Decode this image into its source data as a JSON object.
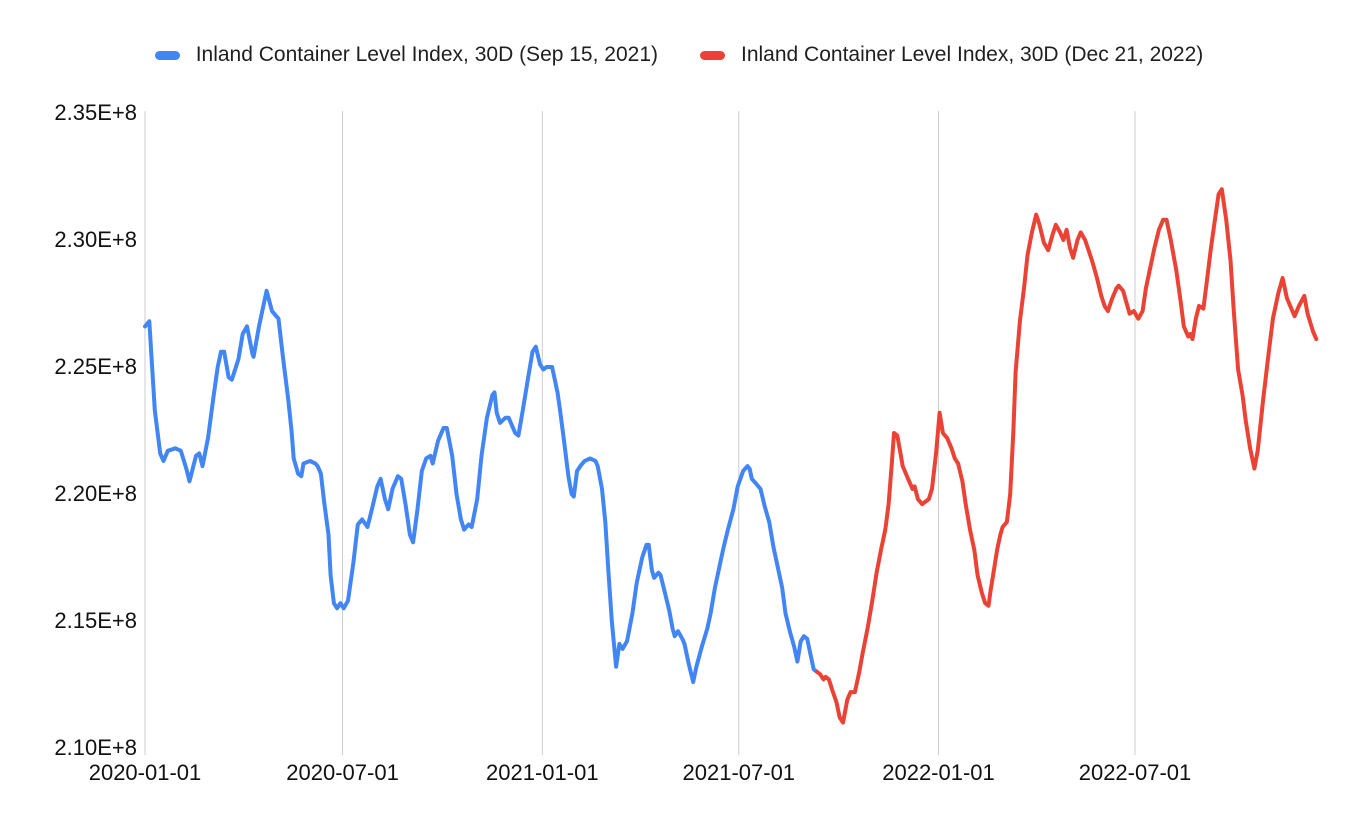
{
  "page": {
    "background": "#ffffff"
  },
  "legend": {
    "items": [
      {
        "label": "Inland Container Level Index, 30D (Sep 15, 2021)",
        "color": "#4285F4"
      },
      {
        "label": "Inland Container Level Index, 30D (Dec 21, 2022)",
        "color": "#EA4335"
      }
    ]
  },
  "chart_data": {
    "type": "line",
    "title": "",
    "legend_position": "top",
    "grid": {
      "vertical": true,
      "horizontal": false,
      "color": "#cccccc"
    },
    "value_unit": "1E+8",
    "x_axis": {
      "unit": "days_since_2020-01-01",
      "min": 0,
      "max": 1092,
      "ticks": [
        {
          "day": 0,
          "label": "2020-01-01"
        },
        {
          "day": 182,
          "label": "2020-07-01"
        },
        {
          "day": 366,
          "label": "2021-01-01"
        },
        {
          "day": 547,
          "label": "2021-07-01"
        },
        {
          "day": 731,
          "label": "2022-01-01"
        },
        {
          "day": 912,
          "label": "2022-07-01"
        }
      ]
    },
    "y_axis": {
      "min": 2.1,
      "max": 2.35,
      "ticks": [
        {
          "value": 2.1,
          "label": "2.10E+8"
        },
        {
          "value": 2.15,
          "label": "2.15E+8"
        },
        {
          "value": 2.2,
          "label": "2.20E+8"
        },
        {
          "value": 2.25,
          "label": "2.25E+8"
        },
        {
          "value": 2.3,
          "label": "2.30E+8"
        },
        {
          "value": 2.35,
          "label": "2.35E+8"
        }
      ]
    },
    "series": [
      {
        "name": "Inland Container Level Index, 30D (Sep 15, 2021)",
        "color": "#4285F4",
        "points": [
          [
            0,
            2.266
          ],
          [
            4,
            2.268
          ],
          [
            9,
            2.233
          ],
          [
            14,
            2.216
          ],
          [
            17,
            2.213
          ],
          [
            21,
            2.217
          ],
          [
            28,
            2.218
          ],
          [
            33,
            2.217
          ],
          [
            38,
            2.21
          ],
          [
            41,
            2.205
          ],
          [
            47,
            2.215
          ],
          [
            50,
            2.216
          ],
          [
            53,
            2.211
          ],
          [
            58,
            2.222
          ],
          [
            63,
            2.238
          ],
          [
            67,
            2.25
          ],
          [
            70,
            2.256
          ],
          [
            73,
            2.256
          ],
          [
            77,
            2.246
          ],
          [
            80,
            2.245
          ],
          [
            86,
            2.253
          ],
          [
            90,
            2.263
          ],
          [
            94,
            2.266
          ],
          [
            99,
            2.255
          ],
          [
            100,
            2.254
          ],
          [
            105,
            2.266
          ],
          [
            110,
            2.276
          ],
          [
            112,
            2.28
          ],
          [
            117,
            2.272
          ],
          [
            121,
            2.27
          ],
          [
            123,
            2.269
          ],
          [
            127,
            2.254
          ],
          [
            132,
            2.237
          ],
          [
            135,
            2.225
          ],
          [
            137,
            2.214
          ],
          [
            141,
            2.208
          ],
          [
            144,
            2.207
          ],
          [
            146,
            2.212
          ],
          [
            152,
            2.213
          ],
          [
            157,
            2.212
          ],
          [
            159,
            2.211
          ],
          [
            162,
            2.208
          ],
          [
            165,
            2.197
          ],
          [
            169,
            2.184
          ],
          [
            171,
            2.168
          ],
          [
            174,
            2.157
          ],
          [
            177,
            2.155
          ],
          [
            180,
            2.157
          ],
          [
            183,
            2.155
          ],
          [
            187,
            2.158
          ],
          [
            192,
            2.173
          ],
          [
            196,
            2.188
          ],
          [
            200,
            2.19
          ],
          [
            205,
            2.187
          ],
          [
            209,
            2.194
          ],
          [
            214,
            2.203
          ],
          [
            217,
            2.206
          ],
          [
            221,
            2.198
          ],
          [
            224,
            2.194
          ],
          [
            228,
            2.202
          ],
          [
            233,
            2.207
          ],
          [
            236,
            2.206
          ],
          [
            240,
            2.196
          ],
          [
            244,
            2.184
          ],
          [
            247,
            2.181
          ],
          [
            251,
            2.194
          ],
          [
            255,
            2.209
          ],
          [
            259,
            2.214
          ],
          [
            263,
            2.215
          ],
          [
            265,
            2.212
          ],
          [
            270,
            2.221
          ],
          [
            275,
            2.226
          ],
          [
            278,
            2.226
          ],
          [
            283,
            2.215
          ],
          [
            287,
            2.2
          ],
          [
            291,
            2.19
          ],
          [
            294,
            2.186
          ],
          [
            298,
            2.188
          ],
          [
            301,
            2.187
          ],
          [
            306,
            2.198
          ],
          [
            310,
            2.215
          ],
          [
            315,
            2.23
          ],
          [
            320,
            2.239
          ],
          [
            322,
            2.24
          ],
          [
            324,
            2.232
          ],
          [
            327,
            2.228
          ],
          [
            332,
            2.23
          ],
          [
            335,
            2.23
          ],
          [
            341,
            2.224
          ],
          [
            344,
            2.223
          ],
          [
            348,
            2.233
          ],
          [
            353,
            2.246
          ],
          [
            357,
            2.256
          ],
          [
            360,
            2.258
          ],
          [
            364,
            2.251
          ],
          [
            367,
            2.249
          ],
          [
            370,
            2.25
          ],
          [
            375,
            2.25
          ],
          [
            380,
            2.24
          ],
          [
            382,
            2.234
          ],
          [
            386,
            2.221
          ],
          [
            390,
            2.207
          ],
          [
            393,
            2.2
          ],
          [
            395,
            2.199
          ],
          [
            398,
            2.209
          ],
          [
            401,
            2.211
          ],
          [
            405,
            2.213
          ],
          [
            410,
            2.214
          ],
          [
            415,
            2.213
          ],
          [
            417,
            2.211
          ],
          [
            421,
            2.202
          ],
          [
            424,
            2.189
          ],
          [
            427,
            2.169
          ],
          [
            430,
            2.15
          ],
          [
            434,
            2.132
          ],
          [
            437,
            2.141
          ],
          [
            440,
            2.139
          ],
          [
            444,
            2.142
          ],
          [
            449,
            2.153
          ],
          [
            453,
            2.165
          ],
          [
            458,
            2.175
          ],
          [
            462,
            2.18
          ],
          [
            464,
            2.18
          ],
          [
            467,
            2.17
          ],
          [
            469,
            2.167
          ],
          [
            473,
            2.169
          ],
          [
            475,
            2.168
          ],
          [
            479,
            2.161
          ],
          [
            483,
            2.154
          ],
          [
            486,
            2.147
          ],
          [
            488,
            2.144
          ],
          [
            491,
            2.146
          ],
          [
            495,
            2.143
          ],
          [
            497,
            2.141
          ],
          [
            501,
            2.133
          ],
          [
            505,
            2.126
          ],
          [
            508,
            2.132
          ],
          [
            513,
            2.14
          ],
          [
            518,
            2.147
          ],
          [
            521,
            2.153
          ],
          [
            525,
            2.163
          ],
          [
            530,
            2.173
          ],
          [
            533,
            2.179
          ],
          [
            537,
            2.186
          ],
          [
            542,
            2.194
          ],
          [
            546,
            2.203
          ],
          [
            551,
            2.209
          ],
          [
            555,
            2.211
          ],
          [
            557,
            2.21
          ],
          [
            559,
            2.206
          ],
          [
            563,
            2.204
          ],
          [
            567,
            2.202
          ],
          [
            571,
            2.195
          ],
          [
            575,
            2.189
          ],
          [
            579,
            2.179
          ],
          [
            582,
            2.173
          ],
          [
            587,
            2.163
          ],
          [
            590,
            2.153
          ],
          [
            594,
            2.146
          ],
          [
            598,
            2.14
          ],
          [
            601,
            2.134
          ],
          [
            604,
            2.142
          ],
          [
            607,
            2.144
          ],
          [
            610,
            2.143
          ],
          [
            613,
            2.137
          ],
          [
            616,
            2.131
          ],
          [
            619,
            2.13
          ]
        ]
      },
      {
        "name": "Inland Container Level Index, 30D (Dec 21, 2022)",
        "color": "#EA4335",
        "points": [
          [
            619,
            2.13
          ],
          [
            622,
            2.129
          ],
          [
            625,
            2.127
          ],
          [
            627,
            2.128
          ],
          [
            630,
            2.127
          ],
          [
            633,
            2.123
          ],
          [
            637,
            2.118
          ],
          [
            640,
            2.112
          ],
          [
            643,
            2.11
          ],
          [
            647,
            2.119
          ],
          [
            650,
            2.122
          ],
          [
            654,
            2.122
          ],
          [
            658,
            2.13
          ],
          [
            661,
            2.137
          ],
          [
            666,
            2.148
          ],
          [
            670,
            2.158
          ],
          [
            674,
            2.169
          ],
          [
            678,
            2.178
          ],
          [
            682,
            2.186
          ],
          [
            685,
            2.196
          ],
          [
            688,
            2.212
          ],
          [
            690,
            2.224
          ],
          [
            693,
            2.223
          ],
          [
            696,
            2.216
          ],
          [
            698,
            2.211
          ],
          [
            703,
            2.206
          ],
          [
            707,
            2.202
          ],
          [
            709,
            2.203
          ],
          [
            712,
            2.198
          ],
          [
            716,
            2.196
          ],
          [
            719,
            2.197
          ],
          [
            722,
            2.198
          ],
          [
            725,
            2.202
          ],
          [
            729,
            2.217
          ],
          [
            732,
            2.232
          ],
          [
            735,
            2.224
          ],
          [
            739,
            2.222
          ],
          [
            743,
            2.218
          ],
          [
            746,
            2.214
          ],
          [
            749,
            2.212
          ],
          [
            753,
            2.205
          ],
          [
            756,
            2.196
          ],
          [
            760,
            2.186
          ],
          [
            764,
            2.178
          ],
          [
            767,
            2.168
          ],
          [
            771,
            2.161
          ],
          [
            774,
            2.157
          ],
          [
            777,
            2.156
          ],
          [
            779,
            2.162
          ],
          [
            782,
            2.17
          ],
          [
            785,
            2.178
          ],
          [
            788,
            2.184
          ],
          [
            790,
            2.187
          ],
          [
            794,
            2.189
          ],
          [
            797,
            2.2
          ],
          [
            800,
            2.225
          ],
          [
            802,
            2.248
          ],
          [
            806,
            2.268
          ],
          [
            810,
            2.282
          ],
          [
            813,
            2.294
          ],
          [
            817,
            2.303
          ],
          [
            821,
            2.31
          ],
          [
            824,
            2.306
          ],
          [
            828,
            2.299
          ],
          [
            832,
            2.296
          ],
          [
            836,
            2.302
          ],
          [
            839,
            2.306
          ],
          [
            843,
            2.303
          ],
          [
            846,
            2.3
          ],
          [
            849,
            2.304
          ],
          [
            852,
            2.297
          ],
          [
            855,
            2.293
          ],
          [
            859,
            2.3
          ],
          [
            862,
            2.303
          ],
          [
            866,
            2.3
          ],
          [
            870,
            2.295
          ],
          [
            873,
            2.291
          ],
          [
            877,
            2.285
          ],
          [
            881,
            2.278
          ],
          [
            884,
            2.274
          ],
          [
            887,
            2.272
          ],
          [
            891,
            2.277
          ],
          [
            895,
            2.281
          ],
          [
            897,
            2.282
          ],
          [
            901,
            2.28
          ],
          [
            905,
            2.274
          ],
          [
            907,
            2.271
          ],
          [
            911,
            2.272
          ],
          [
            915,
            2.269
          ],
          [
            919,
            2.272
          ],
          [
            922,
            2.281
          ],
          [
            926,
            2.289
          ],
          [
            930,
            2.297
          ],
          [
            934,
            2.304
          ],
          [
            938,
            2.308
          ],
          [
            941,
            2.308
          ],
          [
            945,
            2.3
          ],
          [
            950,
            2.288
          ],
          [
            954,
            2.276
          ],
          [
            957,
            2.266
          ],
          [
            961,
            2.262
          ],
          [
            963,
            2.263
          ],
          [
            965,
            2.261
          ],
          [
            968,
            2.269
          ],
          [
            971,
            2.274
          ],
          [
            975,
            2.273
          ],
          [
            978,
            2.283
          ],
          [
            982,
            2.297
          ],
          [
            986,
            2.309
          ],
          [
            989,
            2.318
          ],
          [
            992,
            2.32
          ],
          [
            996,
            2.308
          ],
          [
            1000,
            2.292
          ],
          [
            1003,
            2.272
          ],
          [
            1007,
            2.249
          ],
          [
            1011,
            2.239
          ],
          [
            1014,
            2.229
          ],
          [
            1018,
            2.218
          ],
          [
            1022,
            2.21
          ],
          [
            1025,
            2.217
          ],
          [
            1030,
            2.237
          ],
          [
            1035,
            2.255
          ],
          [
            1039,
            2.269
          ],
          [
            1044,
            2.279
          ],
          [
            1048,
            2.285
          ],
          [
            1052,
            2.277
          ],
          [
            1057,
            2.272
          ],
          [
            1059,
            2.27
          ],
          [
            1063,
            2.274
          ],
          [
            1068,
            2.278
          ],
          [
            1071,
            2.271
          ],
          [
            1076,
            2.264
          ],
          [
            1079,
            2.261
          ]
        ]
      }
    ]
  }
}
